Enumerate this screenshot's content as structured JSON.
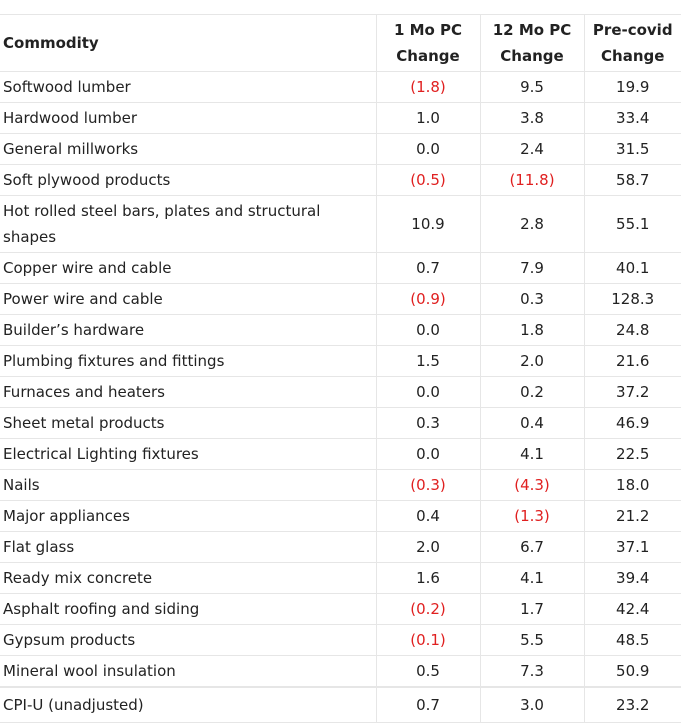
{
  "headers": {
    "commodity": "Commodity",
    "one_mo": [
      "1 Mo PC",
      "Change"
    ],
    "twelve_mo": [
      "12 Mo PC",
      "Change"
    ],
    "pre_covid": [
      "Pre-covid",
      "Change"
    ]
  },
  "rows": [
    {
      "name": "Softwood lumber",
      "m1": "(1.8)",
      "m12": "9.5",
      "pc": "19.9"
    },
    {
      "name": "Hardwood lumber",
      "m1": "1.0",
      "m12": "3.8",
      "pc": "33.4"
    },
    {
      "name": "General millworks",
      "m1": "0.0",
      "m12": "2.4",
      "pc": "31.5"
    },
    {
      "name": "Soft plywood products",
      "m1": "(0.5)",
      "m12": "(11.8)",
      "pc": "58.7"
    },
    {
      "name": "Hot rolled steel bars, plates and structural shapes",
      "m1": "10.9",
      "m12": "2.8",
      "pc": "55.1"
    },
    {
      "name": "Copper wire and cable",
      "m1": "0.7",
      "m12": "7.9",
      "pc": "40.1"
    },
    {
      "name": "Power wire and cable",
      "m1": "(0.9)",
      "m12": "0.3",
      "pc": "128.3"
    },
    {
      "name": "Builder’s hardware",
      "m1": "0.0",
      "m12": "1.8",
      "pc": "24.8"
    },
    {
      "name": "Plumbing fixtures and fittings",
      "m1": "1.5",
      "m12": "2.0",
      "pc": "21.6"
    },
    {
      "name": "Furnaces and heaters",
      "m1": "0.0",
      "m12": "0.2",
      "pc": "37.2"
    },
    {
      "name": "Sheet metal products",
      "m1": "0.3",
      "m12": "0.4",
      "pc": "46.9"
    },
    {
      "name": "Electrical Lighting fixtures",
      "m1": "0.0",
      "m12": "4.1",
      "pc": "22.5"
    },
    {
      "name": "Nails",
      "m1": "(0.3)",
      "m12": "(4.3)",
      "pc": "18.0"
    },
    {
      "name": "Major appliances",
      "m1": "0.4",
      "m12": "(1.3)",
      "pc": "21.2"
    },
    {
      "name": "Flat glass",
      "m1": "2.0",
      "m12": "6.7",
      "pc": "37.1"
    },
    {
      "name": "Ready mix concrete",
      "m1": "1.6",
      "m12": "4.1",
      "pc": "39.4"
    },
    {
      "name": "Asphalt roofing and siding",
      "m1": "(0.2)",
      "m12": "1.7",
      "pc": "42.4"
    },
    {
      "name": "Gypsum products",
      "m1": "(0.1)",
      "m12": "5.5",
      "pc": "48.5"
    },
    {
      "name": "Mineral wool insulation",
      "m1": "0.5",
      "m12": "7.3",
      "pc": "50.9"
    },
    {
      "name": "CPI-U (unadjusted)",
      "m1": "0.7",
      "m12": "3.0",
      "pc": "23.2"
    }
  ],
  "colors": {
    "negative": "#e02020",
    "text": "#222222",
    "border": "#e6e6e6"
  }
}
